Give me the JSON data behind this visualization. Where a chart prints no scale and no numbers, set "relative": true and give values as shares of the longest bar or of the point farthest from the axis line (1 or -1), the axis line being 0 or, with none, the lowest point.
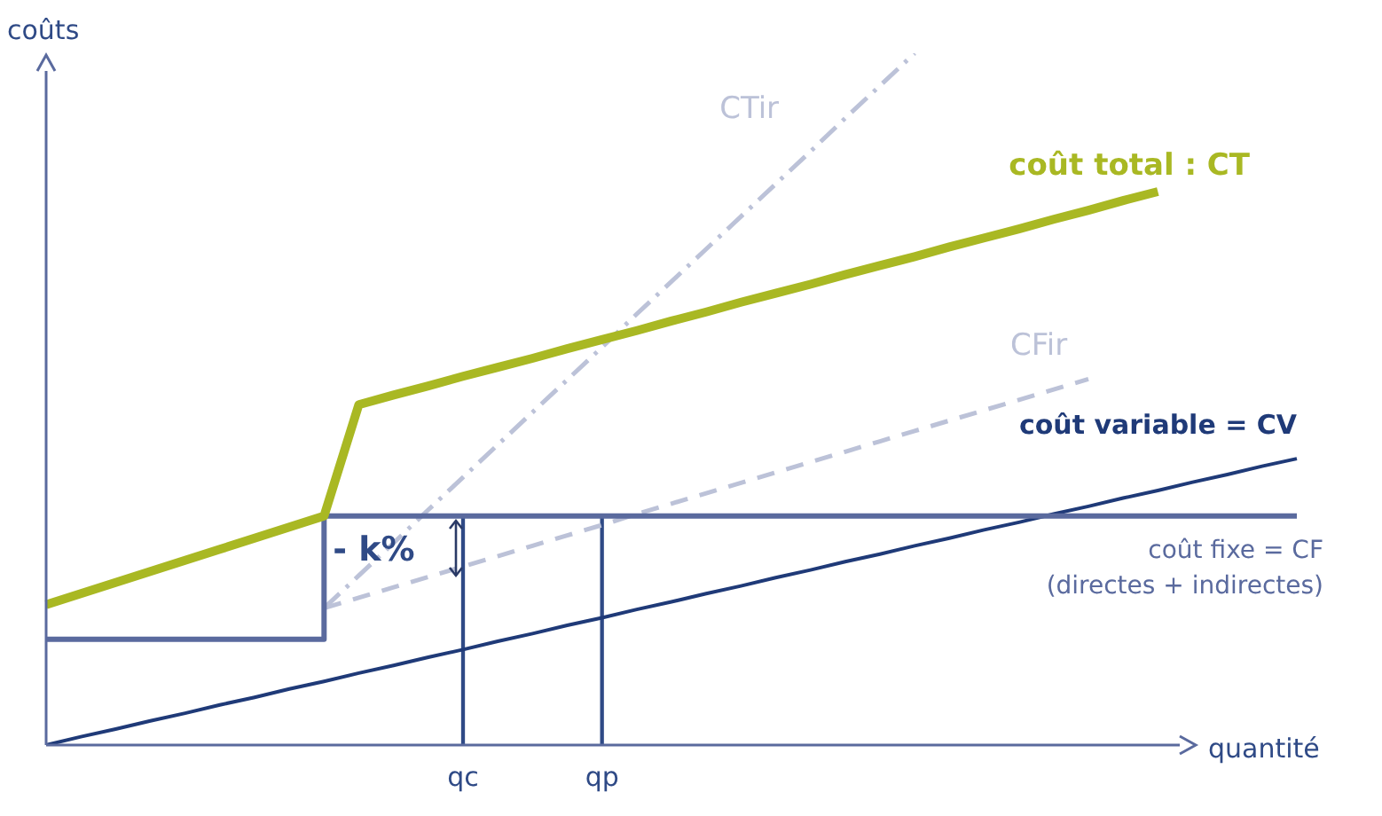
{
  "chart_data": {
    "type": "line",
    "relative": true,
    "xlabel": "quantité",
    "ylabel": "coûts",
    "legend": false,
    "marker": "none",
    "tick_labels": "x",
    "categories": [
      null,
      null,
      null,
      null,
      null,
      null,
      null,
      null,
      null,
      null,
      null,
      null,
      "qc",
      null,
      null,
      null,
      "qp",
      null,
      null,
      null,
      null,
      null,
      null,
      null,
      null,
      null,
      null,
      null,
      null,
      null,
      null,
      null,
      null,
      null,
      null,
      null,
      null
    ],
    "series": [
      {
        "name": "coût total : CT",
        "color": "#a9b823",
        "line_style": "solid",
        "values": [
          0.203,
          0.219,
          0.235,
          0.251,
          0.267,
          0.283,
          0.299,
          0.315,
          0.331,
          0.492,
          0.506,
          0.519,
          0.533,
          0.546,
          0.559,
          0.573,
          0.586,
          0.599,
          0.613,
          0.626,
          0.64,
          0.653,
          0.666,
          0.68,
          0.693,
          0.706,
          0.72,
          0.733,
          0.746,
          0.76,
          0.773,
          0.787,
          0.8,
          null,
          null,
          null,
          null
        ]
      },
      {
        "type": "step",
        "name": "coût fixe = CF\n(directes + indirectes)",
        "color": "#5a6a9e",
        "line_style": "solid",
        "values": [
          0.153,
          0.153,
          0.153,
          0.153,
          0.153,
          0.153,
          0.153,
          0.153,
          0.153,
          0.331,
          0.331,
          0.331,
          0.331,
          0.331,
          0.331,
          0.331,
          0.331,
          0.331,
          0.331,
          0.331,
          0.331,
          0.331,
          0.331,
          0.331,
          0.331,
          0.331,
          0.331,
          0.331,
          0.331,
          0.331,
          0.331,
          0.331,
          0.331,
          0.331,
          0.331,
          0.331,
          0.331
        ]
      },
      {
        "name": "coût variable = CV",
        "color": "#1f3a78",
        "line_style": "solid",
        "values": [
          0,
          0.012,
          0.023,
          0.035,
          0.046,
          0.058,
          0.069,
          0.081,
          0.092,
          0.104,
          0.115,
          0.127,
          0.138,
          0.15,
          0.161,
          0.173,
          0.184,
          0.196,
          0.207,
          0.219,
          0.23,
          0.242,
          0.253,
          0.265,
          0.276,
          0.288,
          0.299,
          0.311,
          0.322,
          0.334,
          0.345,
          0.357,
          0.368,
          0.38,
          0.391,
          0.403,
          0.414
        ]
      },
      {
        "name": "CTir",
        "color": "#bcc2d8",
        "line_style": "dashdot",
        "values": [
          null,
          null,
          null,
          null,
          null,
          null,
          null,
          null,
          0.198,
          0.245,
          0.292,
          0.34,
          0.387,
          0.434,
          0.481,
          0.528,
          0.575,
          0.623,
          0.67,
          0.717,
          0.764,
          0.811,
          0.858,
          0.906,
          0.953,
          1,
          null,
          null,
          null,
          null,
          null,
          null,
          null,
          null,
          null,
          null,
          null
        ]
      },
      {
        "name": "CFir",
        "color": "#bcc2d8",
        "line_style": "dashed",
        "values": [
          null,
          null,
          null,
          null,
          null,
          null,
          null,
          null,
          0.198,
          0.213,
          0.228,
          0.243,
          0.258,
          0.273,
          0.288,
          0.303,
          0.318,
          0.334,
          0.349,
          0.364,
          0.379,
          0.394,
          0.409,
          0.424,
          0.439,
          0.454,
          0.469,
          0.484,
          0.499,
          0.514,
          0.529,
          null,
          null,
          null,
          null,
          null,
          null
        ]
      },
      {
        "type": "bar",
        "color": "#2f4a86",
        "values": [
          null,
          null,
          null,
          null,
          null,
          null,
          null,
          null,
          null,
          null,
          null,
          null,
          0.331,
          null,
          null,
          null,
          null,
          null,
          null,
          null,
          null,
          null,
          null,
          null,
          null,
          null,
          null,
          null,
          null,
          null,
          null,
          null,
          null,
          null,
          null,
          null,
          null
        ]
      },
      {
        "type": "bar",
        "color": "#2f4a86",
        "values": [
          null,
          null,
          null,
          null,
          null,
          null,
          null,
          null,
          null,
          null,
          null,
          null,
          null,
          null,
          null,
          null,
          0.331,
          null,
          null,
          null,
          null,
          null,
          null,
          null,
          null,
          null,
          null,
          null,
          null,
          null,
          null,
          null,
          null,
          null,
          null,
          null,
          null
        ]
      }
    ],
    "annotations": [
      "- k%"
    ]
  }
}
